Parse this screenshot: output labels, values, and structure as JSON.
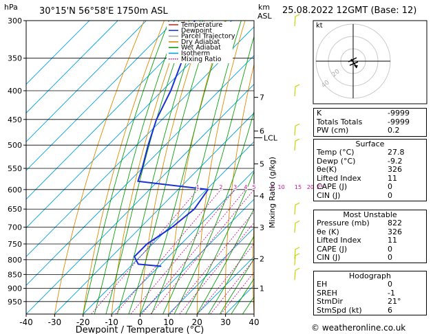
{
  "header": {
    "hpa_label": "hPa",
    "location": "30°15'N  56°58'E  1750m  ASL",
    "km_label": "km",
    "asl_label": "ASL",
    "date": "25.08.2022  12GMT  (Base: 12)"
  },
  "legend": {
    "items": [
      {
        "label": "Temperature",
        "color": "#e0201e"
      },
      {
        "label": "Dewpoint",
        "color": "#1a2fd6"
      },
      {
        "label": "Parcel Trajectory",
        "color": "#a0a0a0"
      },
      {
        "label": "Dry Adiabat",
        "color": "#e08a00"
      },
      {
        "label": "Wet Adiabat",
        "color": "#0aa00a"
      },
      {
        "label": "Isotherm",
        "color": "#00a0e0"
      },
      {
        "label": "Mixing Ratio",
        "color": "#d0109a"
      }
    ]
  },
  "chart_data": {
    "type": "line",
    "xlabel": "Dewpoint / Temperature (°C)",
    "ylabel_right": "Mixing Ratio (g/kg)",
    "x_ticks": [
      -40,
      -30,
      -20,
      -10,
      0,
      10,
      20,
      30,
      40
    ],
    "xlim": [
      -40,
      40
    ],
    "pressure_ticks": [
      300,
      350,
      400,
      450,
      500,
      550,
      600,
      650,
      700,
      750,
      800,
      850,
      900,
      950
    ],
    "ylim_hpa": [
      300,
      1000
    ],
    "y_scale": "log",
    "km_ticks": [
      {
        "km": "1",
        "p": 900
      },
      {
        "km": "2",
        "p": 797
      },
      {
        "km": "3",
        "p": 701
      },
      {
        "km": "4",
        "p": 616
      },
      {
        "km": "5",
        "p": 540
      },
      {
        "km": "6",
        "p": 472
      },
      {
        "km": "7",
        "p": 411
      }
    ],
    "lcl": {
      "label": "LCL",
      "p": 485
    },
    "mixing_ratio_labels": [
      "1",
      "2",
      "3",
      "4",
      "5",
      "8",
      "10",
      "15",
      "20",
      "25"
    ],
    "mixing_ratio_values": [
      1,
      2,
      3,
      4,
      5,
      8,
      10,
      15,
      20,
      25
    ],
    "series": [
      {
        "name": "Temperature",
        "color": "#e0201e",
        "points": [
          {
            "p": 822,
            "t": 27.8
          },
          {
            "p": 800,
            "t": 26.0
          },
          {
            "p": 750,
            "t": 21.5
          },
          {
            "p": 700,
            "t": 17.0
          },
          {
            "p": 650,
            "t": 12.0
          },
          {
            "p": 600,
            "t": 7.0
          },
          {
            "p": 575,
            "t": 5.0
          },
          {
            "p": 550,
            "t": 3.5
          },
          {
            "p": 500,
            "t": -2.5
          },
          {
            "p": 475,
            "t": -6.0
          },
          {
            "p": 450,
            "t": -7.5
          },
          {
            "p": 400,
            "t": -14.5
          },
          {
            "p": 350,
            "t": -21.5
          },
          {
            "p": 300,
            "t": -30.5
          }
        ]
      },
      {
        "name": "Dewpoint",
        "color": "#1a2fd6",
        "points": [
          {
            "p": 822,
            "t": -9.2
          },
          {
            "p": 815,
            "t": -18.0
          },
          {
            "p": 790,
            "t": -22.0
          },
          {
            "p": 750,
            "t": -22.0
          },
          {
            "p": 700,
            "t": -19.0
          },
          {
            "p": 650,
            "t": -17.5
          },
          {
            "p": 600,
            "t": -19.5
          },
          {
            "p": 580,
            "t": -47.0
          },
          {
            "p": 550,
            "t": -50.0
          },
          {
            "p": 500,
            "t": -56.0
          },
          {
            "p": 450,
            "t": -62.0
          },
          {
            "p": 400,
            "t": -67.0
          },
          {
            "p": 350,
            "t": -74.0
          },
          {
            "p": 300,
            "t": -83.0
          }
        ]
      },
      {
        "name": "Parcel Trajectory",
        "color": "#a0a0a0",
        "points": [
          {
            "p": 822,
            "t": 27.8
          },
          {
            "p": 700,
            "t": 14.0
          },
          {
            "p": 600,
            "t": 1.0
          },
          {
            "p": 550,
            "t": -6.0
          },
          {
            "p": 485,
            "t": -15.0
          },
          {
            "p": 450,
            "t": -19.0
          },
          {
            "p": 400,
            "t": -25.0
          },
          {
            "p": 350,
            "t": -32.5
          },
          {
            "p": 300,
            "t": -41.5
          }
        ]
      }
    ],
    "wind_barbs_p": [
      300,
      400,
      470,
      500,
      650,
      700,
      780,
      800,
      850
    ]
  },
  "hodograph": {
    "unit_label": "kt",
    "ring_labels": [
      "20",
      "40"
    ]
  },
  "indices": {
    "k": {
      "label": "K",
      "value": "-9999"
    },
    "totals": {
      "label": "Totals Totals",
      "value": "-9999"
    },
    "pw": {
      "label": "PW (cm)",
      "value": "0.2"
    }
  },
  "surface": {
    "title": "Surface",
    "rows": [
      {
        "label": "Temp (°C)",
        "value": "27.8"
      },
      {
        "label": "Dewp (°C)",
        "value": "-9.2"
      },
      {
        "label": "θe(K)",
        "value": "326"
      },
      {
        "label": "Lifted Index",
        "value": "11"
      },
      {
        "label": "CAPE (J)",
        "value": "0"
      },
      {
        "label": "CIN (J)",
        "value": "0"
      }
    ]
  },
  "most_unstable": {
    "title": "Most Unstable",
    "rows": [
      {
        "label": "Pressure (mb)",
        "value": "822"
      },
      {
        "label": "θe (K)",
        "value": "326"
      },
      {
        "label": "Lifted Index",
        "value": "11"
      },
      {
        "label": "CAPE (J)",
        "value": "0"
      },
      {
        "label": "CIN (J)",
        "value": "0"
      }
    ]
  },
  "hodograph_table": {
    "title": "Hodograph",
    "rows": [
      {
        "label": "EH",
        "value": "0"
      },
      {
        "label": "SREH",
        "value": "-1"
      },
      {
        "label": "StmDir",
        "value": "21°"
      },
      {
        "label": "StmSpd (kt)",
        "value": "6"
      }
    ]
  },
  "footer": "© weatheronline.co.uk"
}
